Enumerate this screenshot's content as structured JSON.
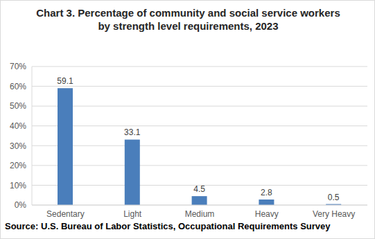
{
  "chart_data": {
    "type": "bar",
    "title": "Chart 3. Percentage of community and social service workers\nby strength level requirements, 2023",
    "categories": [
      "Sedentary",
      "Light",
      "Medium",
      "Heavy",
      "Very Heavy"
    ],
    "values": [
      59.1,
      33.1,
      4.5,
      2.8,
      0.5
    ],
    "color": "#4a7ebb",
    "ylim": [
      0,
      70
    ],
    "yticks": [
      {
        "value": 0,
        "label": "0%"
      },
      {
        "value": 10,
        "label": "10%"
      },
      {
        "value": 20,
        "label": "20%"
      },
      {
        "value": 30,
        "label": "30%"
      },
      {
        "value": 40,
        "label": "40%"
      },
      {
        "value": 50,
        "label": "50%"
      },
      {
        "value": 60,
        "label": "60%"
      },
      {
        "value": 70,
        "label": "70%"
      }
    ],
    "grid": true,
    "data_labels": true,
    "source": "Source: U.S. Bureau of Labor Statistics, Occupational Requirements Survey"
  }
}
